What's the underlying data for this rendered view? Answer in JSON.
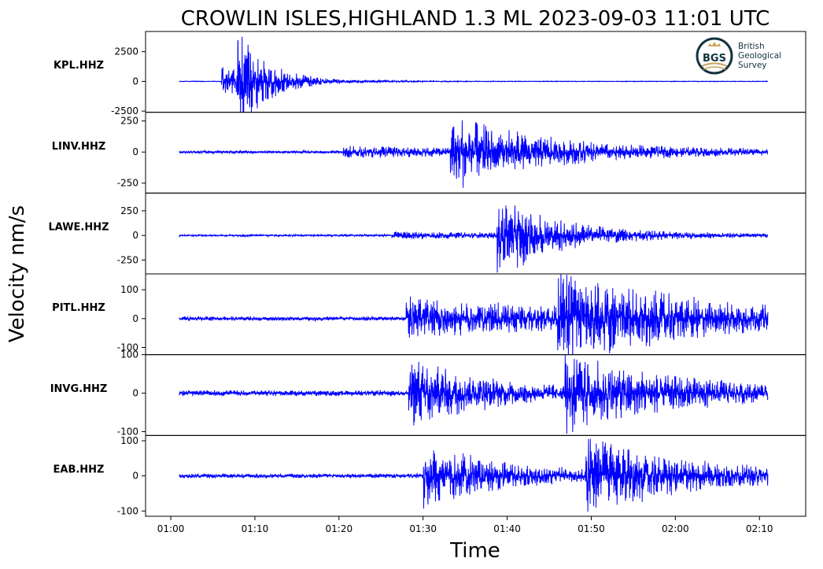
{
  "chart_data": {
    "type": "line",
    "title": "CROWLIN ISLES,HIGHLAND 1.3 ML   2023-09-03 11:01 UTC",
    "xlabel": "Time",
    "ylabel": "Velocity nm/s",
    "x_ticks": [
      "01:00",
      "01:10",
      "01:20",
      "01:30",
      "01:40",
      "01:50",
      "02:00",
      "02:10"
    ],
    "x_tick_seconds": [
      60,
      70,
      80,
      90,
      100,
      110,
      120,
      130
    ],
    "xlim_seconds": [
      57,
      135.5
    ],
    "signal_span_seconds": [
      61,
      131
    ],
    "line_color": "#0000ff",
    "grid": false,
    "legend": "none",
    "logo": {
      "name": "bgs-logo",
      "abbrev": "BGS",
      "lines": [
        "British",
        "Geological",
        "Survey"
      ],
      "color": "#12333f"
    },
    "series": [
      {
        "name": "KPL.HHZ",
        "ylim": [
          -2600,
          4200
        ],
        "yticks": [
          2500,
          0,
          -2500
        ],
        "ytick_labels": [
          "2500",
          "0",
          "-2500"
        ],
        "noise_amplitude": 30,
        "events": [
          {
            "time": 66.0,
            "amplitude": 1300,
            "decay": 6
          },
          {
            "time": 67.9,
            "amplitude": 4100,
            "decay": 3
          }
        ]
      },
      {
        "name": "LINV.HHZ",
        "ylim": [
          -330,
          320
        ],
        "yticks": [
          250,
          0,
          -250
        ],
        "ytick_labels": [
          "250",
          "0",
          "-250"
        ],
        "noise_amplitude": 12,
        "events": [
          {
            "time": 80.5,
            "amplitude": 40,
            "decay": 40
          },
          {
            "time": 93.2,
            "amplitude": 300,
            "decay": 10
          }
        ]
      },
      {
        "name": "LAWE.HHZ",
        "ylim": [
          -390,
          430
        ],
        "yticks": [
          250,
          0,
          -250
        ],
        "ytick_labels": [
          "250",
          "0",
          "-250"
        ],
        "noise_amplitude": 10,
        "events": [
          {
            "time": 86.3,
            "amplitude": 35,
            "decay": 30
          },
          {
            "time": 98.8,
            "amplitude": 430,
            "decay": 7
          }
        ]
      },
      {
        "name": "PITL.HHZ",
        "ylim": [
          -125,
          155
        ],
        "yticks": [
          100,
          0,
          -100
        ],
        "ytick_labels": [
          "100",
          "0",
          "-100"
        ],
        "noise_amplitude": 8,
        "events": [
          {
            "time": 88.0,
            "amplitude": 70,
            "decay": 30
          },
          {
            "time": 106.0,
            "amplitude": 145,
            "decay": 14
          }
        ]
      },
      {
        "name": "INVG.HHZ",
        "ylim": [
          -110,
          100
        ],
        "yticks": [
          100,
          0,
          -100
        ],
        "ytick_labels": [
          "100",
          "0",
          "-100"
        ],
        "noise_amplitude": 8,
        "events": [
          {
            "time": 88.3,
            "amplitude": 92,
            "decay": 10
          },
          {
            "time": 106.8,
            "amplitude": 95,
            "decay": 14
          }
        ]
      },
      {
        "name": "EAB.HHZ",
        "ylim": [
          -115,
          115
        ],
        "yticks": [
          100,
          0,
          -100
        ],
        "ytick_labels": [
          "100",
          "0",
          "-100"
        ],
        "noise_amplitude": 7,
        "events": [
          {
            "time": 90.0,
            "amplitude": 95,
            "decay": 10
          },
          {
            "time": 109.3,
            "amplitude": 105,
            "decay": 13
          }
        ]
      }
    ]
  }
}
